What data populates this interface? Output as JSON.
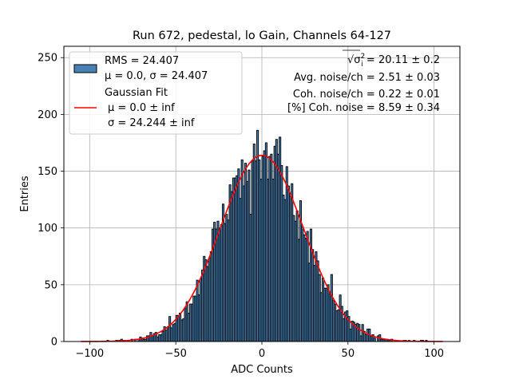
{
  "chart_data": {
    "type": "bar",
    "title": "Run 672, pedestal, lo Gain, Channels 64-127",
    "xlabel": "ADC Counts",
    "ylabel": "Entries",
    "xlim": [
      -115,
      115
    ],
    "ylim": [
      0,
      260
    ],
    "xticks": [
      -100,
      -50,
      0,
      50,
      100
    ],
    "xtick_labels": [
      "−100",
      "−50",
      "0",
      "50",
      "100"
    ],
    "yticks": [
      0,
      50,
      100,
      150,
      200,
      250
    ],
    "ytick_labels": [
      "0",
      "50",
      "100",
      "150",
      "200",
      "250"
    ],
    "grid": true,
    "bin_range": [
      -105,
      105
    ],
    "bin_width": 1,
    "histogram": {
      "name": "RMS = 24.407",
      "name_line2": "μ = 0.0, σ = 24.407",
      "color": "#4682b4",
      "edge_color": "#000000",
      "rms": 24.407,
      "mean": 0.0,
      "sigma": 24.407,
      "approx_peak_entries": 186
    },
    "fit": {
      "name": "Gaussian Fit",
      "name_line2": "μ = 0.0 ± inf",
      "name_line3": "σ = 24.244 ± inf",
      "color": "#ff0000",
      "mean": 0.0,
      "sigma": 24.244,
      "amplitude": 164
    },
    "legend": {
      "position": "top-left"
    },
    "annotations": {
      "sigma_prefix": "√σ",
      "sigma_i_sup": "2",
      "sigma_i_sub": "i",
      "sigma_value": " = 20.11 ± 0.2",
      "avg_noise": "Avg. noise/ch = 2.51 ± 0.03",
      "coh_noise": "Coh. noise/ch = 0.22 ± 0.01",
      "coh_percent": "[%] Coh. noise = 8.59 ± 0.34"
    }
  }
}
